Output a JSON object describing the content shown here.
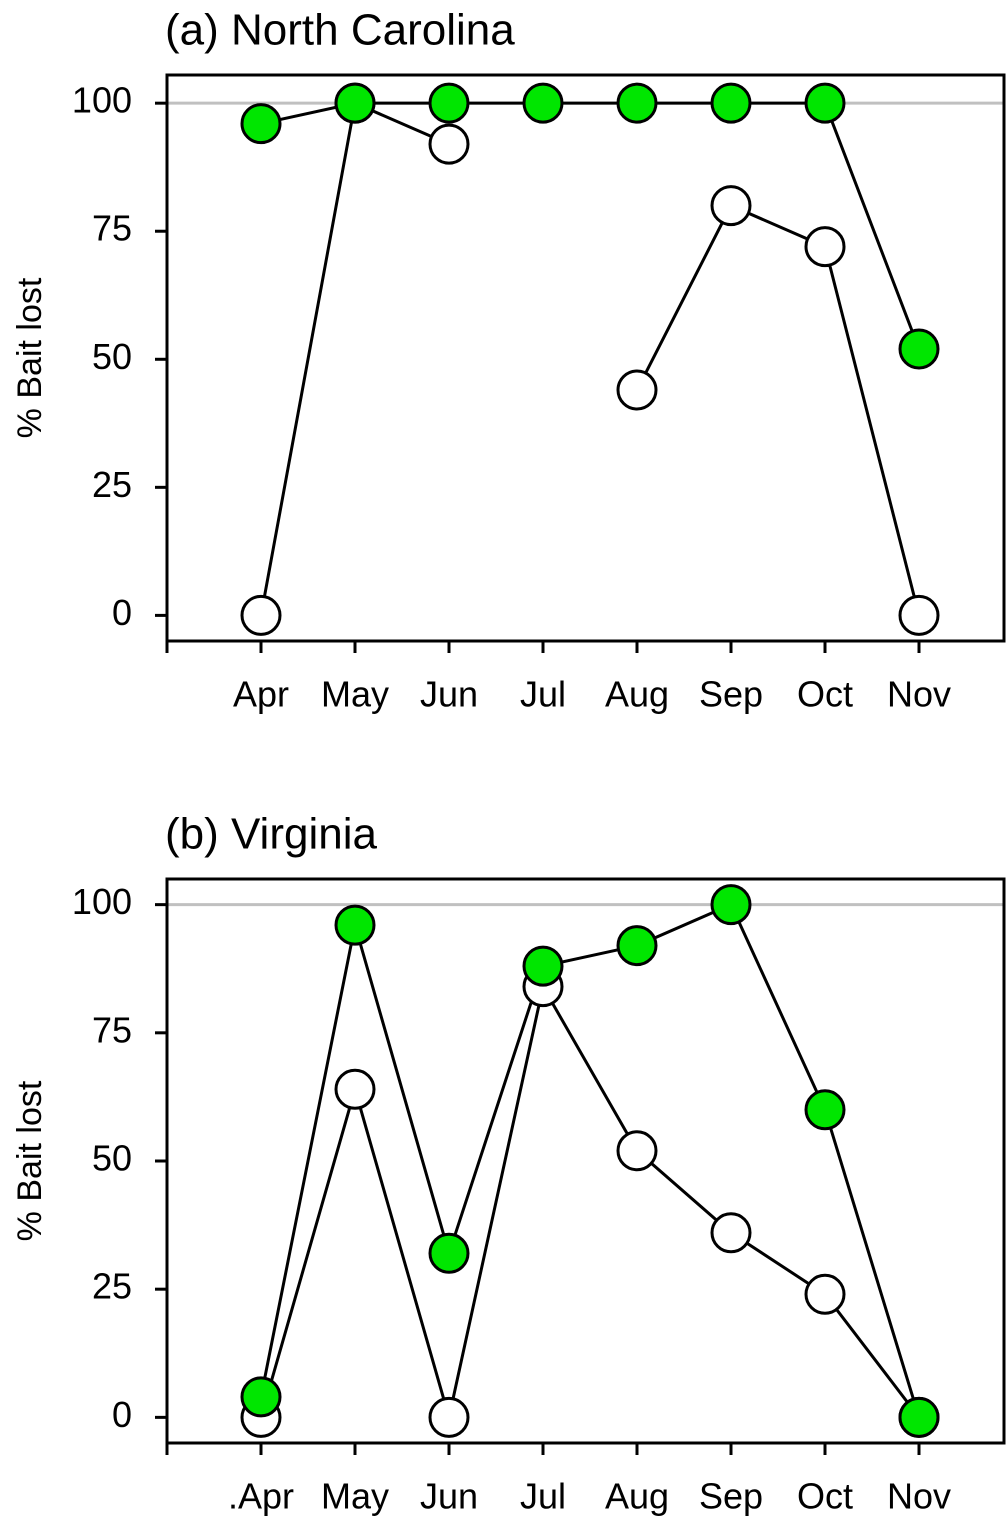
{
  "chart_data": [
    {
      "type": "line",
      "title": "(a) North Carolina",
      "ylabel": "% Bait lost",
      "categories": [
        "Apr",
        "May",
        "Jun",
        "Jul",
        "Aug",
        "Sep",
        "Oct",
        "Nov"
      ],
      "series": [
        {
          "color": "#ffffff",
          "values": [
            0,
            100,
            92,
            null,
            44,
            80,
            72,
            0
          ]
        },
        {
          "color": "#00e600",
          "values": [
            96,
            100,
            100,
            100,
            100,
            100,
            100,
            52
          ]
        }
      ],
      "ylim": [
        -5,
        105.5
      ],
      "yticks": [
        0,
        25,
        50,
        75,
        100
      ],
      "reference_line": 100,
      "reference_color": "#c0c0c0"
    },
    {
      "type": "line",
      "title": "(b) Virginia",
      "ylabel": "% Bait lost",
      "categories": [
        ".Apr",
        "May",
        "Jun",
        "Jul",
        "Aug",
        "Sep",
        "Oct",
        "Nov"
      ],
      "series": [
        {
          "color": "#ffffff",
          "values": [
            0,
            64,
            0,
            84,
            52,
            36,
            24,
            0
          ]
        },
        {
          "color": "#00e600",
          "values": [
            4,
            96,
            32,
            88,
            92,
            100,
            60,
            0
          ]
        }
      ],
      "ylim": [
        -5,
        105
      ],
      "yticks": [
        0,
        25,
        50,
        75,
        100
      ],
      "reference_line": 100,
      "reference_color": "#c0c0c0"
    }
  ]
}
